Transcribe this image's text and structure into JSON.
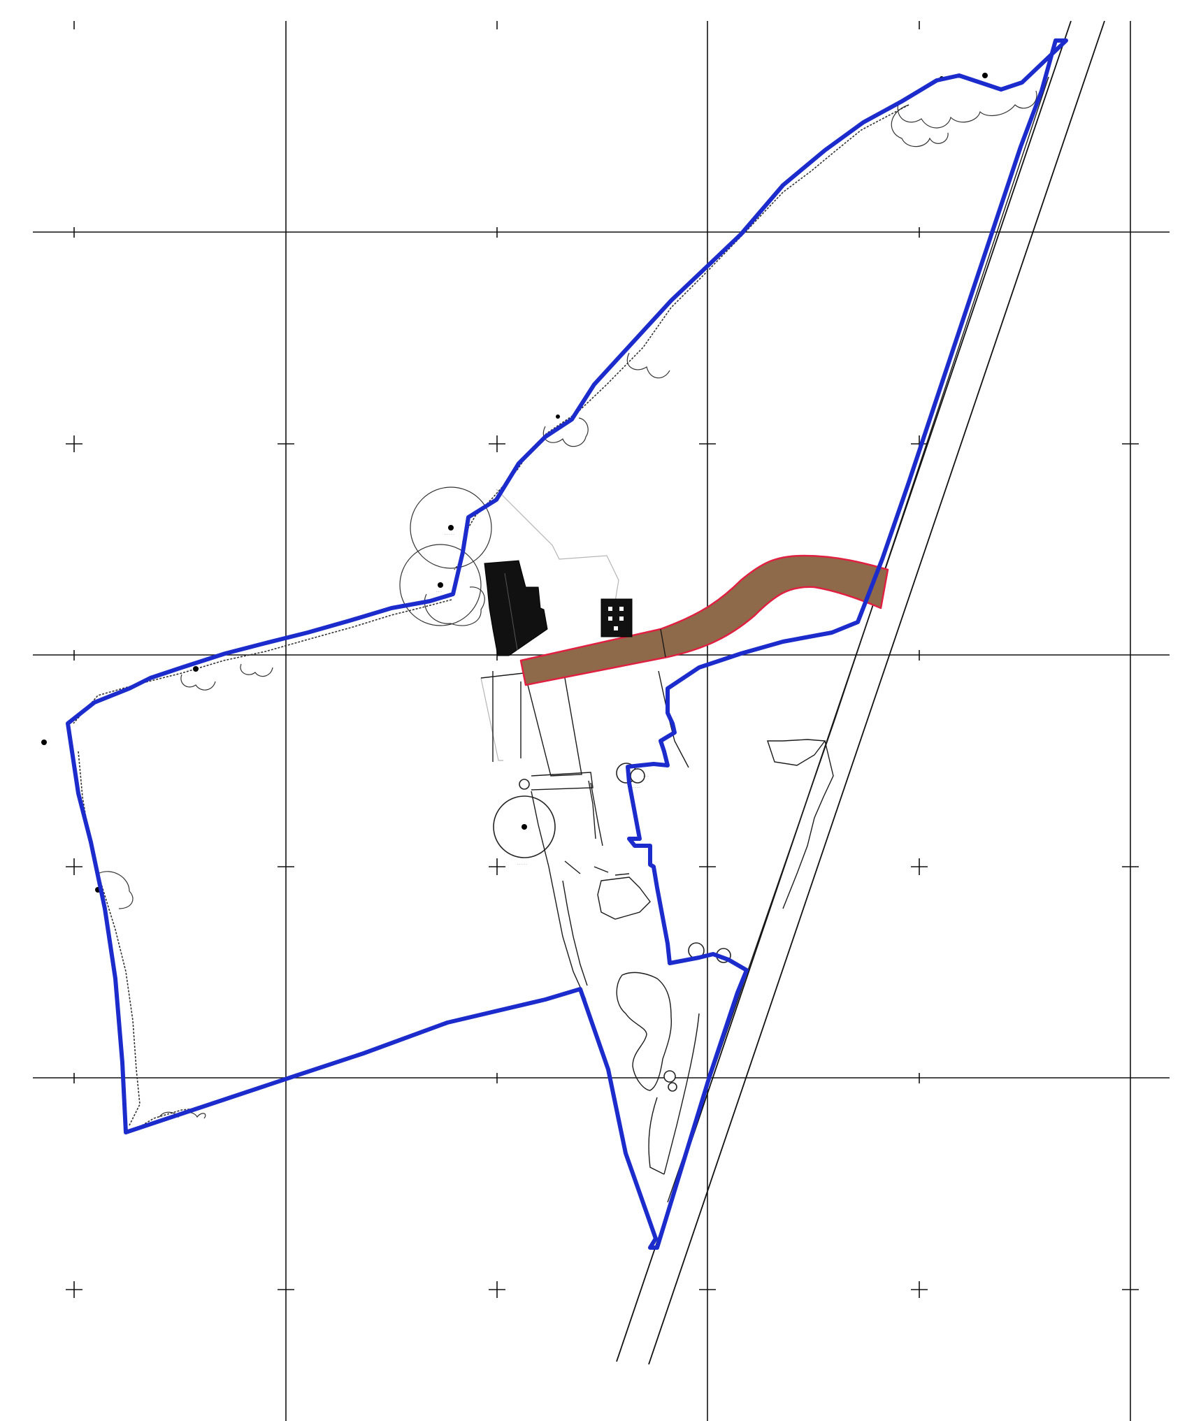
{
  "map": {
    "colors": {
      "site_boundary": "#1c2ccc",
      "access_track_fill": "#8f6a4a",
      "access_track_outline": "#e02040",
      "building": "#111111",
      "grid": "#111111",
      "background": "#ffffff"
    },
    "features": [
      "grid",
      "site-boundary",
      "access-track",
      "buildings",
      "trees",
      "hedgerows",
      "railway-line"
    ]
  }
}
